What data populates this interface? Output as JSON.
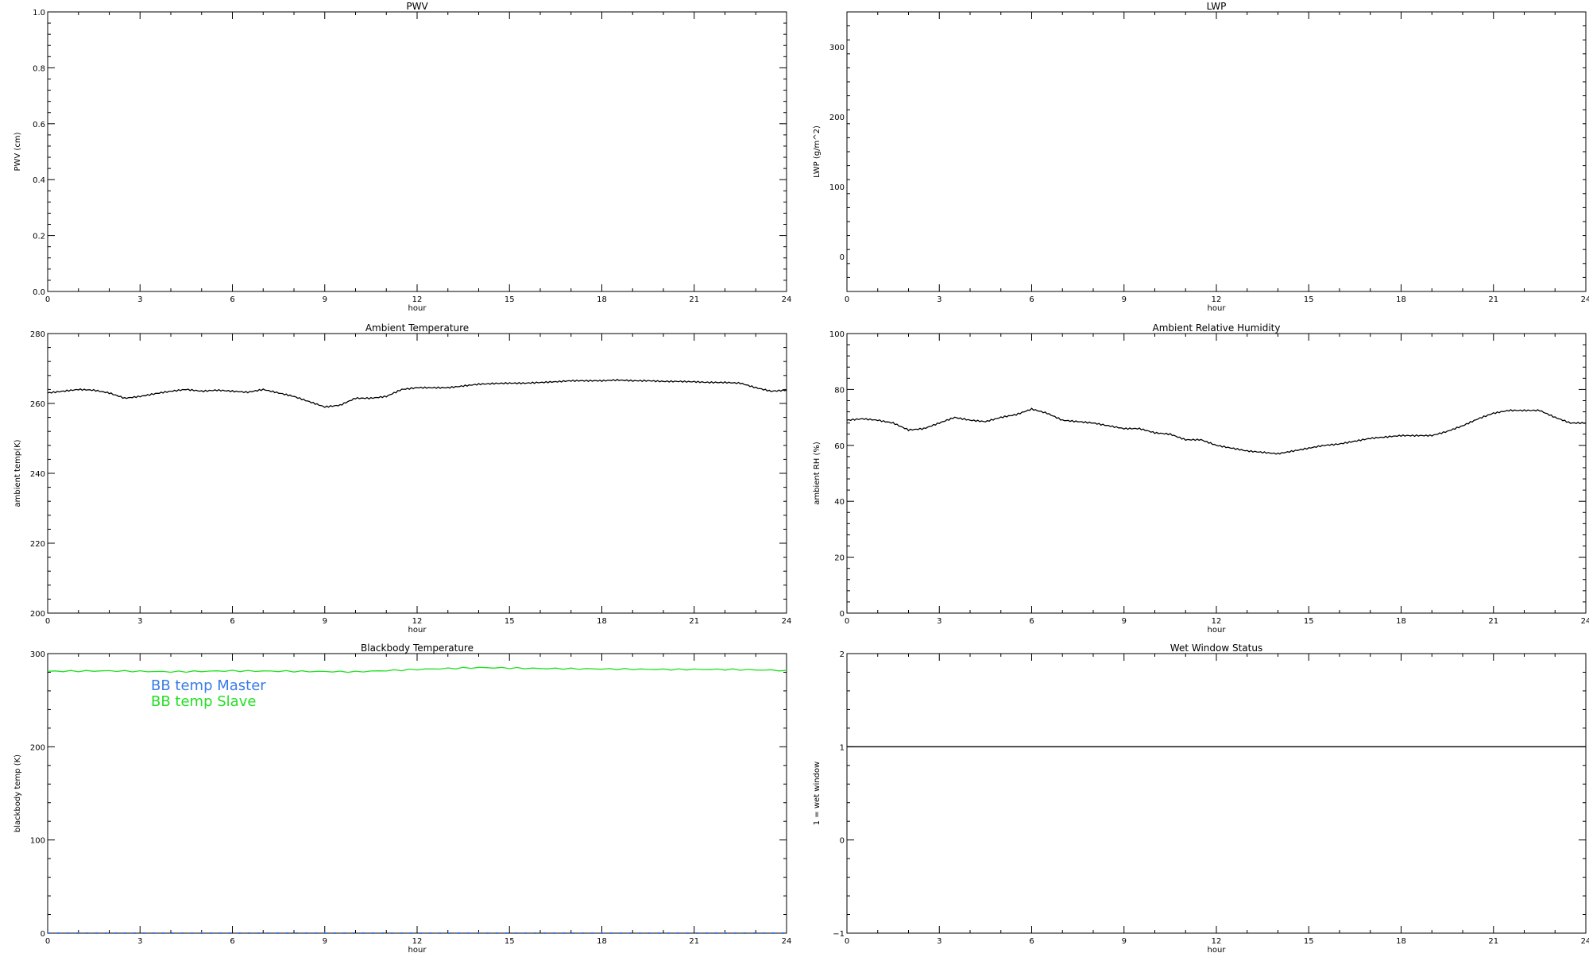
{
  "chart_data": [
    {
      "type": "line",
      "title": "PWV",
      "xlabel": "hour",
      "ylabel": "PWV (cm)",
      "xlim": [
        0,
        24
      ],
      "ylim": [
        0,
        1
      ],
      "xticks": [
        0,
        3,
        6,
        9,
        12,
        15,
        18,
        21,
        24
      ],
      "yticks": [
        0.0,
        0.2,
        0.4,
        0.6,
        0.8,
        1.0
      ],
      "yticklabels": [
        "0.0",
        "0.2",
        "0.4",
        "0.6",
        "0.8",
        "1.0"
      ],
      "series": []
    },
    {
      "type": "line",
      "title": "LWP",
      "xlabel": "hour",
      "ylabel": "LWP (g/m^2)",
      "xlim": [
        0,
        24
      ],
      "ylim": [
        -50,
        350
      ],
      "xticks": [
        0,
        3,
        6,
        9,
        12,
        15,
        18,
        21,
        24
      ],
      "yticks": [
        0,
        100,
        200,
        300
      ],
      "yticklabels": [
        "0",
        "100",
        "200",
        "300"
      ],
      "series": []
    },
    {
      "type": "line",
      "title": "Ambient Temperature",
      "xlabel": "hour",
      "ylabel": "ambient temp(K)",
      "xlim": [
        0,
        24
      ],
      "ylim": [
        200,
        280
      ],
      "xticks": [
        0,
        3,
        6,
        9,
        12,
        15,
        18,
        21,
        24
      ],
      "yticks": [
        200,
        220,
        240,
        260,
        280
      ],
      "yticklabels": [
        "200",
        "220",
        "240",
        "260",
        "280"
      ],
      "series": [
        {
          "color": "#000000",
          "x": [
            0,
            0.5,
            1,
            1.5,
            2,
            2.5,
            3,
            3.5,
            4,
            4.5,
            5,
            5.5,
            6,
            6.5,
            7,
            7.5,
            8,
            8.5,
            9,
            9.5,
            10,
            10.5,
            11,
            11.5,
            12,
            12.5,
            13,
            13.5,
            14,
            14.5,
            15,
            15.5,
            16,
            16.5,
            17,
            17.5,
            18,
            18.5,
            19,
            19.5,
            20,
            20.5,
            21,
            21.5,
            22,
            22.5,
            23,
            23.5,
            24
          ],
          "y": [
            263,
            263.5,
            264,
            263.8,
            263,
            261.5,
            262,
            262.8,
            263.5,
            264,
            263.5,
            263.8,
            263.5,
            263.2,
            264,
            263,
            262,
            260.5,
            259,
            259.5,
            261.5,
            261.5,
            262,
            264,
            264.5,
            264.5,
            264.5,
            265,
            265.5,
            265.7,
            265.8,
            265.8,
            266,
            266.2,
            266.5,
            266.5,
            266.5,
            266.7,
            266.5,
            266.5,
            266.3,
            266.3,
            266.2,
            266,
            266,
            265.8,
            264.5,
            263.5,
            263.8
          ]
        }
      ]
    },
    {
      "type": "line",
      "title": "Ambient Relative Humidity",
      "xlabel": "hour",
      "ylabel": "ambient RH (%)",
      "xlim": [
        0,
        24
      ],
      "ylim": [
        0,
        100
      ],
      "xticks": [
        0,
        3,
        6,
        9,
        12,
        15,
        18,
        21,
        24
      ],
      "yticks": [
        0,
        20,
        40,
        60,
        80,
        100
      ],
      "yticklabels": [
        "0",
        "20",
        "40",
        "60",
        "80",
        "100"
      ],
      "series": [
        {
          "color": "#000000",
          "x": [
            0,
            0.5,
            1,
            1.5,
            2,
            2.5,
            3,
            3.5,
            4,
            4.5,
            5,
            5.5,
            6,
            6.5,
            7,
            7.5,
            8,
            8.5,
            9,
            9.5,
            10,
            10.5,
            11,
            11.5,
            12,
            12.5,
            13,
            13.5,
            14,
            14.5,
            15,
            15.5,
            16,
            16.5,
            17,
            17.5,
            18,
            18.5,
            19,
            19.5,
            20,
            20.5,
            21,
            21.5,
            22,
            22.5,
            23,
            23.5,
            24
          ],
          "y": [
            69,
            69.5,
            69,
            68,
            65.5,
            66,
            68,
            70,
            69,
            68.5,
            70,
            71,
            73,
            71.5,
            69,
            68.5,
            68,
            67,
            66,
            66,
            64.5,
            64,
            62,
            62,
            60,
            59,
            58,
            57.5,
            57,
            58,
            59,
            60,
            60.5,
            61.5,
            62.5,
            63,
            63.5,
            63.5,
            63.5,
            65,
            67,
            69.5,
            71.5,
            72.5,
            72.5,
            72.5,
            70,
            68,
            68
          ]
        }
      ]
    },
    {
      "type": "line",
      "title": "Blackbody Temperature",
      "xlabel": "hour",
      "ylabel": "blackbody temp (K)",
      "xlim": [
        0,
        24
      ],
      "ylim": [
        0,
        300
      ],
      "xticks": [
        0,
        3,
        6,
        9,
        12,
        15,
        18,
        21,
        24
      ],
      "yticks": [
        0,
        100,
        200,
        300
      ],
      "yticklabels": [
        "0",
        "100",
        "200",
        "300"
      ],
      "legend": [
        "BB temp Master",
        "BB temp Slave"
      ],
      "series": [
        {
          "name": "BB temp Master",
          "color": "#3a7be8",
          "x": [
            0,
            24
          ],
          "y": [
            0,
            0
          ]
        },
        {
          "name": "BB temp Slave",
          "color": "#22e022",
          "x": [
            0,
            2,
            4,
            6,
            8,
            10,
            12,
            14,
            16,
            18,
            20,
            22,
            24
          ],
          "y": [
            281,
            281.5,
            280.5,
            281.5,
            281,
            280.5,
            283,
            285,
            284,
            283.5,
            283,
            283,
            282
          ]
        }
      ]
    },
    {
      "type": "line",
      "title": "Wet Window Status",
      "xlabel": "hour",
      "ylabel": "1 = wet window",
      "xlim": [
        0,
        24
      ],
      "ylim": [
        -1,
        2
      ],
      "xticks": [
        0,
        3,
        6,
        9,
        12,
        15,
        18,
        21,
        24
      ],
      "yticks": [
        -1,
        0,
        1,
        2
      ],
      "yticklabels": [
        "−1",
        "0",
        "1",
        "2"
      ],
      "series": [
        {
          "color": "#000000",
          "x": [
            0,
            24
          ],
          "y": [
            1,
            1
          ]
        }
      ]
    }
  ]
}
